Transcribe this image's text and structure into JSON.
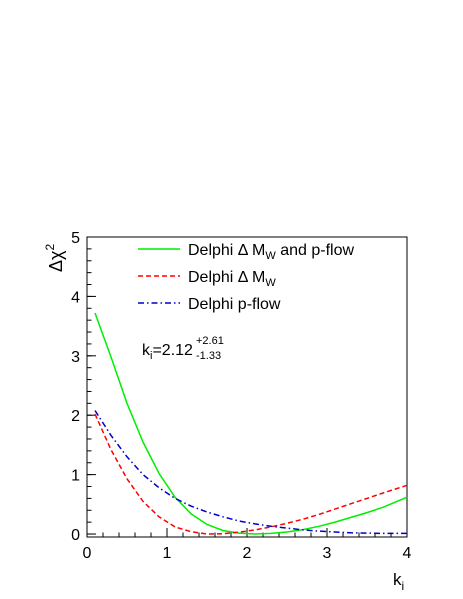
{
  "chart_data": {
    "type": "line",
    "xlabel_main": "k",
    "xlabel_sub": "i",
    "ylabel_main": "Δχ",
    "ylabel_sup": "2",
    "xlim": [
      0,
      4
    ],
    "ylim": [
      -0.05,
      5
    ],
    "x_ticks": [
      0,
      1,
      2,
      3,
      4
    ],
    "y_ticks": [
      0,
      1,
      2,
      3,
      4,
      5
    ],
    "legend_position": "top-center",
    "annotation": {
      "base": "k",
      "base_sub": "i",
      "value": "=2.12",
      "sup": "+2.61",
      "sub": "-1.33"
    },
    "series": [
      {
        "name_main": "Delphi Δ M",
        "name_sub": "W",
        "name_tail": " and p-flow",
        "color": "#00ee00",
        "dash": "solid",
        "x": [
          0.1,
          0.3,
          0.5,
          0.7,
          0.9,
          1.1,
          1.3,
          1.5,
          1.7,
          1.9,
          2.1,
          2.3,
          2.5,
          2.7,
          2.9,
          3.1,
          3.3,
          3.5,
          3.7,
          4.0
        ],
        "y": [
          3.72,
          2.98,
          2.2,
          1.55,
          1.02,
          0.62,
          0.34,
          0.16,
          0.06,
          0.015,
          0.0,
          0.01,
          0.035,
          0.075,
          0.13,
          0.2,
          0.28,
          0.36,
          0.45,
          0.62
        ]
      },
      {
        "name_main": "Delphi Δ M",
        "name_sub": "W",
        "name_tail": "",
        "color": "#ff0000",
        "dash": "dashed",
        "x": [
          0.1,
          0.3,
          0.5,
          0.7,
          0.9,
          1.1,
          1.3,
          1.5,
          1.7,
          1.9,
          2.1,
          2.3,
          2.5,
          2.7,
          2.9,
          3.1,
          3.3,
          3.5,
          3.7,
          4.0
        ],
        "y": [
          2.02,
          1.42,
          0.93,
          0.55,
          0.29,
          0.12,
          0.04,
          0.0,
          0.005,
          0.03,
          0.07,
          0.12,
          0.18,
          0.25,
          0.33,
          0.42,
          0.51,
          0.6,
          0.69,
          0.82
        ]
      },
      {
        "name_main": "Delphi p-flow",
        "name_sub": "",
        "name_tail": "",
        "color": "#0000cc",
        "dash": "dashdot",
        "x": [
          0.1,
          0.3,
          0.5,
          0.7,
          0.9,
          1.1,
          1.3,
          1.5,
          1.7,
          1.9,
          2.1,
          2.3,
          2.5,
          2.7,
          2.9,
          3.1,
          3.3,
          3.5,
          3.7,
          4.0
        ],
        "y": [
          2.08,
          1.66,
          1.3,
          1.0,
          0.78,
          0.6,
          0.47,
          0.37,
          0.29,
          0.22,
          0.17,
          0.13,
          0.1,
          0.07,
          0.05,
          0.035,
          0.02,
          0.015,
          0.01,
          0.01
        ]
      }
    ]
  }
}
